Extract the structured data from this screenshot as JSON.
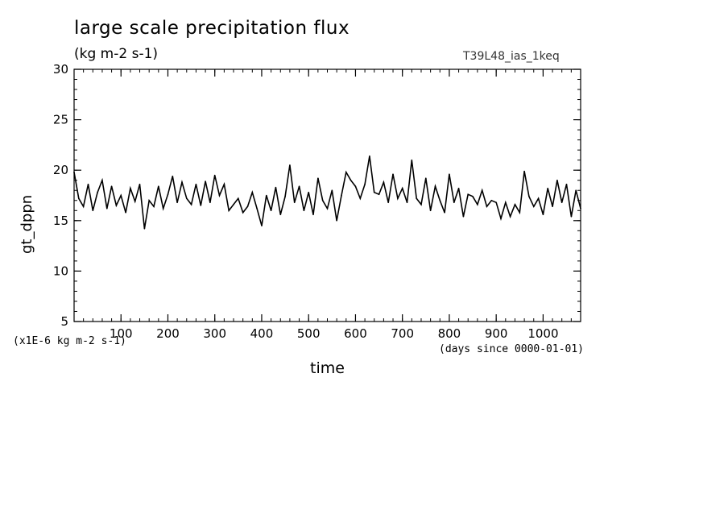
{
  "header": {
    "title": "large scale precipitation flux",
    "subtitle": "(kg m-2 s-1)",
    "run_name": "T39L48_ias_1keq"
  },
  "axes": {
    "ylabel": "gt_dppn",
    "xlabel": "time",
    "yunit": "(x1E-6 kg m-2 s-1)",
    "xunit": "(days since 0000-01-01)"
  },
  "chart_data": {
    "type": "line",
    "title": "large scale precipitation flux",
    "subtitle": "(kg m-2 s-1)",
    "xlabel": "time",
    "ylabel": "gt_dppn",
    "xlim": [
      0,
      1080
    ],
    "ylim": [
      5,
      30
    ],
    "xticks": [
      100,
      200,
      300,
      400,
      500,
      600,
      700,
      800,
      900,
      1000
    ],
    "yticks": [
      5,
      10,
      15,
      20,
      25,
      30
    ],
    "grid": false,
    "line_color": "#000000",
    "series": [
      {
        "x": [
          0,
          10,
          20,
          30,
          40,
          50,
          60,
          70,
          80,
          90,
          100,
          110,
          120,
          130,
          140,
          150,
          160,
          170,
          180,
          190,
          200,
          210,
          220,
          230,
          240,
          250,
          260,
          270,
          280,
          290,
          300,
          310,
          320,
          330,
          340,
          350,
          360,
          370,
          380,
          390,
          400,
          410,
          420,
          430,
          440,
          450,
          460,
          470,
          480,
          490,
          500,
          510,
          520,
          530,
          540,
          550,
          560,
          570,
          580,
          590,
          600,
          610,
          620,
          630,
          640,
          650,
          660,
          670,
          680,
          690,
          700,
          710,
          720,
          730,
          740,
          750,
          760,
          770,
          780,
          790,
          800,
          810,
          820,
          830,
          840,
          850,
          860,
          870,
          880,
          890,
          900,
          910,
          920,
          930,
          940,
          950,
          960,
          970,
          980,
          990,
          1000,
          1010,
          1020,
          1030,
          1040,
          1050,
          1060,
          1070,
          1080
        ],
        "y": [
          19.8,
          17.2,
          16.4,
          18.6,
          16.0,
          17.8,
          19.0,
          16.2,
          18.4,
          16.5,
          17.5,
          15.8,
          18.2,
          16.9,
          18.6,
          14.2,
          17.0,
          16.4,
          18.4,
          16.2,
          17.6,
          19.4,
          16.8,
          18.8,
          17.2,
          16.6,
          18.6,
          16.5,
          18.9,
          16.8,
          19.5,
          17.5,
          18.6,
          16.0,
          16.6,
          17.2,
          15.8,
          16.4,
          17.8,
          16.2,
          14.5,
          17.5,
          16.0,
          18.3,
          15.6,
          17.4,
          20.5,
          16.8,
          18.4,
          16.0,
          17.8,
          15.6,
          19.2,
          17.0,
          16.2,
          18.0,
          15.0,
          17.5,
          19.8,
          19.0,
          18.4,
          17.2,
          18.6,
          21.4,
          17.8,
          17.6,
          18.8,
          16.8,
          19.6,
          17.2,
          18.2,
          16.8,
          21.0,
          17.2,
          16.6,
          19.2,
          16.0,
          18.4,
          17.0,
          15.8,
          19.6,
          16.8,
          18.2,
          15.4,
          17.6,
          17.4,
          16.6,
          18.0,
          16.4,
          17.0,
          16.8,
          15.2,
          16.8,
          15.4,
          16.6,
          15.8,
          19.9,
          17.4,
          16.4,
          17.2,
          15.6,
          18.2,
          16.4,
          19.0,
          16.8,
          18.6,
          15.4,
          18.0,
          16.2
        ]
      }
    ]
  }
}
